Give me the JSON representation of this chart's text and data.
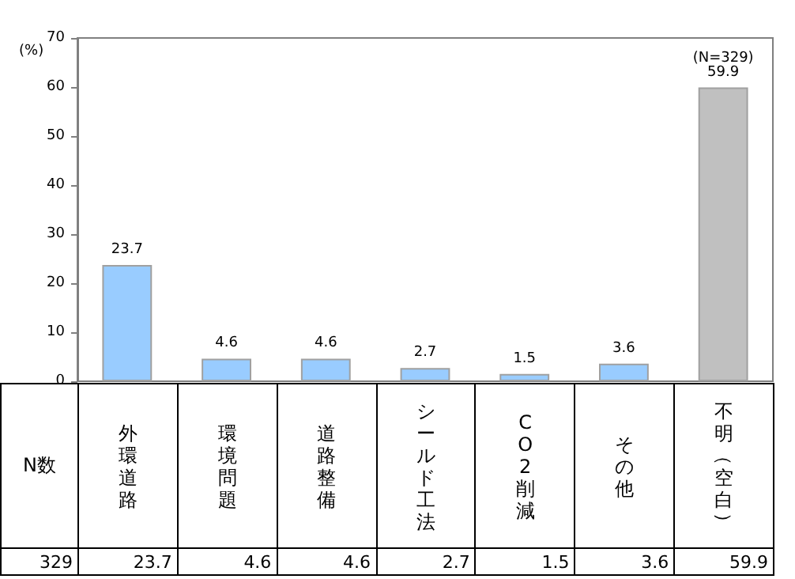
{
  "chart_data": {
    "type": "bar",
    "ylabel": "(%)",
    "categories": [
      "外環道路",
      "環境問題",
      "道路整備",
      "シールド工法",
      "CO2削減",
      "その他",
      "不明（空白）"
    ],
    "values": [
      23.7,
      4.6,
      4.6,
      2.7,
      1.5,
      3.6,
      59.9
    ],
    "value_labels": [
      "23.7",
      "4.6",
      "4.6",
      "2.7",
      "1.5",
      "3.6",
      "59.9"
    ],
    "colors": [
      "#99ccff",
      "#99ccff",
      "#99ccff",
      "#99ccff",
      "#99ccff",
      "#99ccff",
      "#c0c0c0"
    ],
    "ylim": [
      0,
      70
    ],
    "yticks": [
      0,
      10,
      20,
      30,
      40,
      50,
      60,
      70
    ],
    "grid": false,
    "annotations": [
      {
        "text": "(N=329)",
        "x": "不明（空白）",
        "y": 59.9
      },
      "N数",
      "329",
      "23.7",
      "4.6",
      "4.6",
      "2.7",
      "1.5",
      "3.6",
      "59.9"
    ]
  }
}
